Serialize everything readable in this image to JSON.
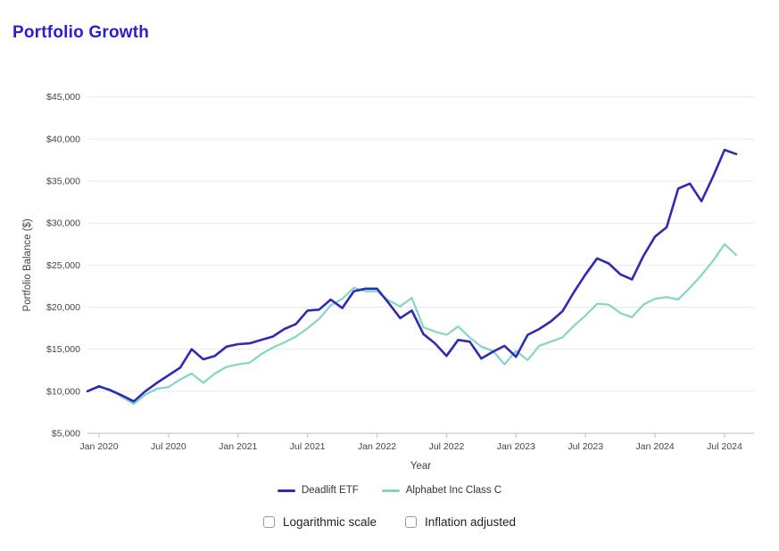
{
  "page": {
    "title": "Portfolio Growth"
  },
  "chart_data": {
    "type": "line",
    "title": "Portfolio Growth",
    "xlabel": "Year",
    "ylabel": "Portfolio Balance ($)",
    "ylim": [
      5000,
      45000
    ],
    "grid": true,
    "legend_position": "bottom",
    "x": [
      "Dec 2019",
      "Jan 2020",
      "Feb 2020",
      "Mar 2020",
      "Apr 2020",
      "May 2020",
      "Jun 2020",
      "Jul 2020",
      "Aug 2020",
      "Sep 2020",
      "Oct 2020",
      "Nov 2020",
      "Dec 2020",
      "Jan 2021",
      "Feb 2021",
      "Mar 2021",
      "Apr 2021",
      "May 2021",
      "Jun 2021",
      "Jul 2021",
      "Aug 2021",
      "Sep 2021",
      "Oct 2021",
      "Nov 2021",
      "Dec 2021",
      "Jan 2022",
      "Feb 2022",
      "Mar 2022",
      "Apr 2022",
      "May 2022",
      "Jun 2022",
      "Jul 2022",
      "Aug 2022",
      "Sep 2022",
      "Oct 2022",
      "Nov 2022",
      "Dec 2022",
      "Jan 2023",
      "Feb 2023",
      "Mar 2023",
      "Apr 2023",
      "May 2023",
      "Jun 2023",
      "Jul 2023",
      "Aug 2023",
      "Sep 2023",
      "Oct 2023",
      "Nov 2023",
      "Dec 2023",
      "Jan 2024",
      "Feb 2024",
      "Mar 2024",
      "Apr 2024",
      "May 2024",
      "Jun 2024",
      "Jul 2024",
      "Aug 2024"
    ],
    "x_tick_labels": [
      "Jan 2020",
      "Jul 2020",
      "Jan 2021",
      "Jul 2021",
      "Jan 2022",
      "Jul 2022",
      "Jan 2023",
      "Jul 2023",
      "Jan 2024",
      "Jul 2024"
    ],
    "x_tick_indices": [
      1,
      7,
      13,
      19,
      25,
      31,
      37,
      43,
      49,
      55
    ],
    "y_tick_values": [
      5000,
      10000,
      15000,
      20000,
      25000,
      30000,
      35000,
      40000,
      45000
    ],
    "y_tick_labels": [
      "$5,000",
      "$10,000",
      "$15,000",
      "$20,000",
      "$25,000",
      "$30,000",
      "$35,000",
      "$40,000",
      "$45,000"
    ],
    "series": [
      {
        "name": "Deadlift ETF",
        "color": "#2f2bb2",
        "values": [
          10000,
          10600,
          10100,
          9500,
          8800,
          10000,
          11000,
          11900,
          12800,
          15000,
          13800,
          14200,
          15300,
          15600,
          15700,
          16100,
          16500,
          17400,
          18000,
          19600,
          19700,
          20900,
          19900,
          21900,
          22200,
          22200,
          20500,
          18700,
          19600,
          16800,
          15700,
          14200,
          16100,
          15900,
          13900,
          14700,
          15400,
          14100,
          16700,
          17400,
          18300,
          19500,
          21800,
          23900,
          25800,
          25200,
          23900,
          23300,
          26100,
          28400,
          29500,
          34100,
          34700,
          32600,
          35500,
          38700,
          38200
        ]
      },
      {
        "name": "Alphabet Inc Class C",
        "color": "#84d6c3",
        "values": [
          10000,
          10500,
          10200,
          9300,
          8500,
          9600,
          10300,
          10500,
          11400,
          12100,
          11000,
          12100,
          12900,
          13200,
          13400,
          14400,
          15200,
          15800,
          16500,
          17500,
          18600,
          20200,
          21000,
          22300,
          21900,
          21900,
          20800,
          20100,
          21100,
          17600,
          17100,
          16700,
          17700,
          16400,
          15300,
          14800,
          13200,
          14800,
          13700,
          15400,
          15900,
          16400,
          17800,
          19000,
          20400,
          20300,
          19300,
          18800,
          20300,
          21000,
          21200,
          20900,
          22300,
          23800,
          25500,
          27500,
          26200
        ]
      }
    ]
  },
  "controls": {
    "checkboxes": [
      {
        "label": "Logarithmic scale",
        "checked": false
      },
      {
        "label": "Inflation adjusted",
        "checked": false
      }
    ]
  },
  "colors": {
    "title": "#2b1fce",
    "gridline": "#e9e9e9",
    "axis_line": "#c9c9c9",
    "tick_text": "#444444"
  }
}
